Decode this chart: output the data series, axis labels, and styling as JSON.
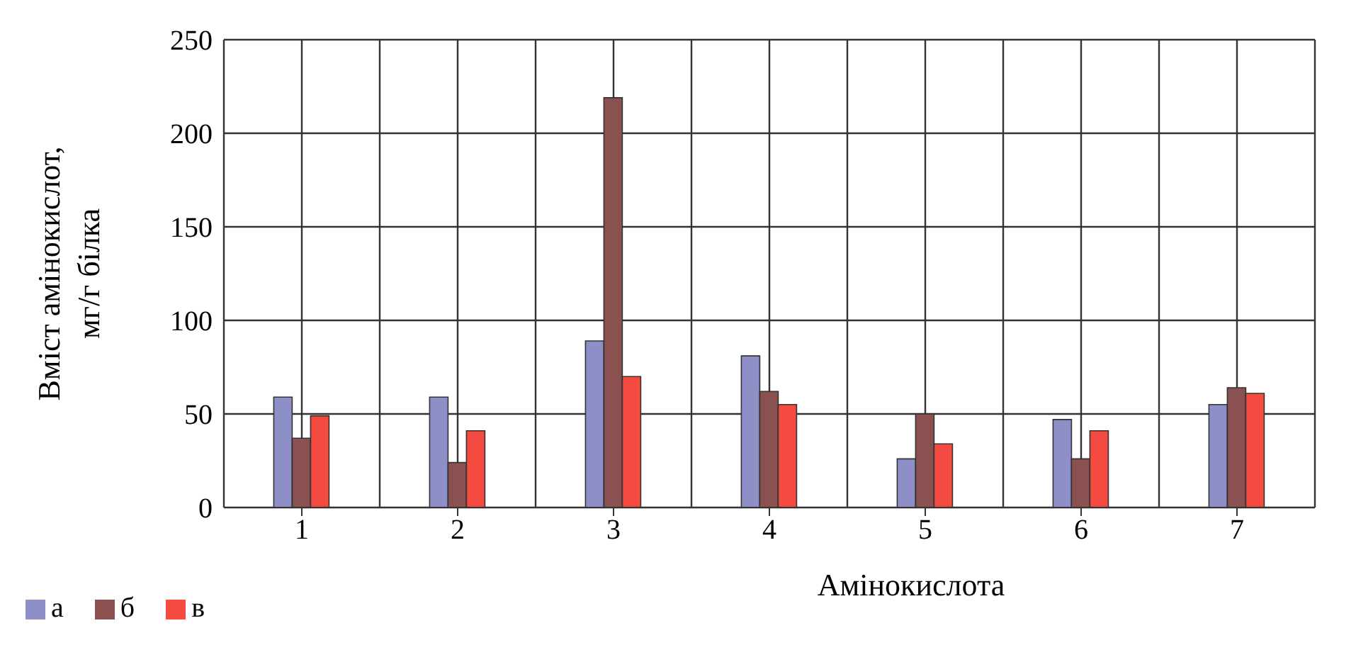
{
  "chart_data": {
    "type": "bar",
    "xlabel": "Амінокислота",
    "ylabel": "Вміст амінокислот, мг/г білка",
    "categories": [
      "1",
      "2",
      "3",
      "4",
      "5",
      "6",
      "7"
    ],
    "series": [
      {
        "name": "а",
        "color": "#8f8fc8",
        "values": [
          59,
          59,
          89,
          81,
          26,
          47,
          55
        ]
      },
      {
        "name": "б",
        "color": "#8b5050",
        "values": [
          37,
          24,
          219,
          62,
          50,
          26,
          64
        ]
      },
      {
        "name": "в",
        "color": "#f44a40",
        "values": [
          49,
          41,
          70,
          55,
          34,
          41,
          61
        ]
      }
    ],
    "ylim": [
      0,
      250
    ],
    "yticks": [
      0,
      50,
      100,
      150,
      200,
      250
    ],
    "grid": true,
    "legend": "bottom left"
  }
}
